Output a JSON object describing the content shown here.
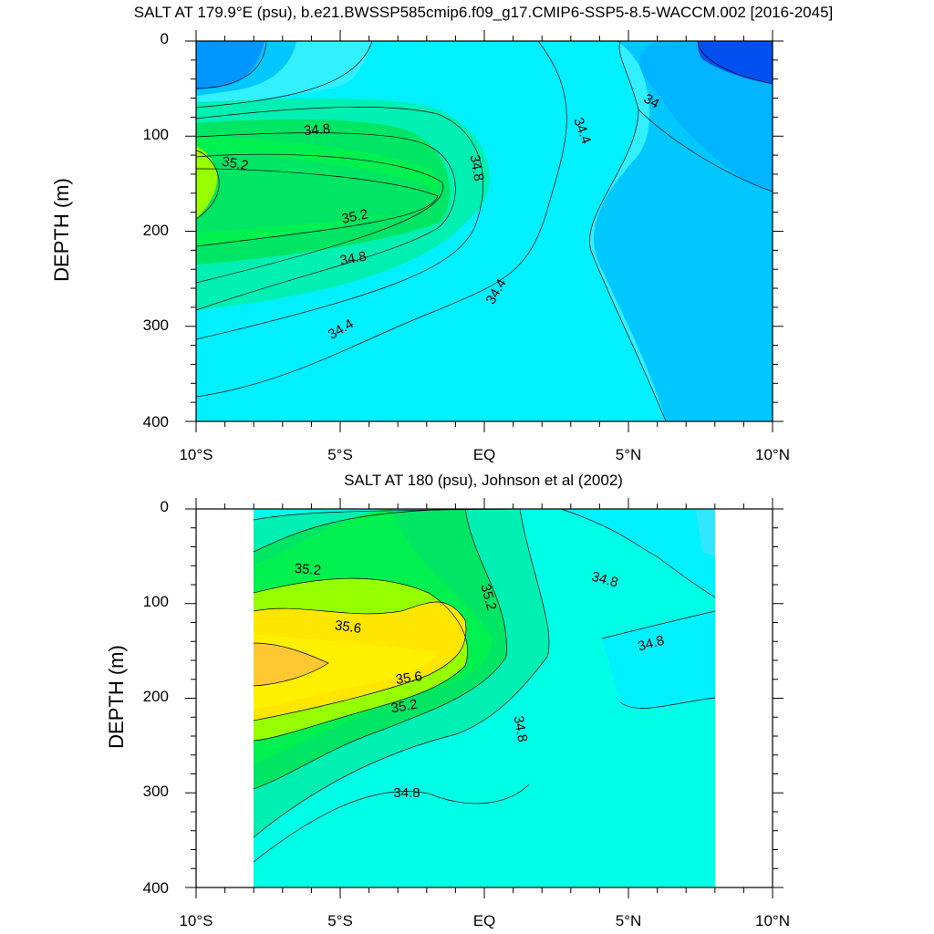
{
  "chart_data": [
    {
      "type": "contour",
      "title": "SALT AT 179.9°E (psu), b.e21.BWSSP585cmip6.f09_g17.CMIP6-SSP5-8.5-WACCM.002 [2016-2045]",
      "ylabel": "DEPTH (m)",
      "xlim": [
        -10,
        10
      ],
      "ylim": [
        400,
        0
      ],
      "x_ticks": [
        "10°S",
        "5°S",
        "EQ",
        "5°N",
        "10°N"
      ],
      "y_ticks": [
        "0",
        "100",
        "200",
        "300",
        "400"
      ],
      "contour_interval": 0.2,
      "contour_labels": [
        "34.8",
        "35.2",
        "34.8",
        "35.2",
        "34.8",
        "34.4",
        "34.4",
        "34",
        "34.8",
        "34.4"
      ],
      "colors": [
        "#0050f0",
        "#0096ff",
        "#00c8ff",
        "#00e6ff",
        "#32f0ff",
        "#00ffe6",
        "#00f0b4",
        "#00e664",
        "#00f050",
        "#96ff00"
      ]
    },
    {
      "type": "contour",
      "title": "SALT AT 180 (psu), Johnson et al (2002)",
      "ylabel": "DEPTH (m)",
      "xlim": [
        -10,
        10
      ],
      "ylim": [
        400,
        0
      ],
      "x_ticks": [
        "10°S",
        "5°S",
        "EQ",
        "5°N",
        "10°N"
      ],
      "y_ticks": [
        "0",
        "100",
        "200",
        "300",
        "400"
      ],
      "data_extent_lat": [
        -8,
        8
      ],
      "contour_interval": 0.2,
      "contour_labels": [
        "35.2",
        "35.6",
        "35.6",
        "35.2",
        "35.2",
        "34.8",
        "34.8",
        "34.8",
        "34.8"
      ],
      "colors": [
        "#32f0ff",
        "#00ffe6",
        "#00f0b4",
        "#00e664",
        "#00f050",
        "#96ff00",
        "#ffe600",
        "#fff000",
        "#ffc832"
      ]
    }
  ]
}
